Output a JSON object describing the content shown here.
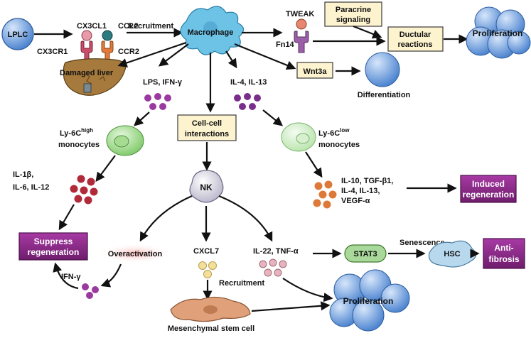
{
  "nodes": {
    "lplc": "LPLC",
    "cx3cl1": "CX3CL1",
    "ccl2": "CCL2",
    "cx3cr1": "CX3CR1",
    "ccr2": "CCR2",
    "damaged_liver": "Damaged liver",
    "recruitment_top": "Recruitment",
    "macrophage": "Macrophage",
    "tweak": "TWEAK",
    "fn14": "Fn14",
    "paracrine_1": "Paracrine",
    "paracrine_2": "signaling",
    "ductular_1": "Ductular",
    "ductular_2": "reactions",
    "proliferation_top": "Proliferation",
    "wnt3a": "Wnt3a",
    "differentiation": "Differentiation",
    "lps_ifn": "LPS, IFN-γ",
    "il4_il13": "IL-4, IL-13",
    "cellcell_1": "Cell-cell",
    "cellcell_2": "interactions",
    "ly6c_high_pre": "Ly-6C",
    "ly6c_high_sup": "high",
    "monocytes_left": "monocytes",
    "ly6c_low_pre": "Ly-6C",
    "ly6c_low_sup": "low",
    "monocytes_right": "monocytes",
    "il1b_1": "IL-1β,",
    "il1b_2": "IL-6, IL-12",
    "il10_1": "IL-10, TGF-β1,",
    "il10_2": "IL-4, IL-13,",
    "il10_3": "VEGF-α",
    "suppress_1": "Suppress",
    "suppress_2": "regeneration",
    "induced_1": "Induced",
    "induced_2": "regeneration",
    "nk": "NK",
    "overactivation": "Overactivation",
    "cxcl7": "CXCL7",
    "il22_tnf": "IL-22, TNF-α",
    "stat3": "STAT3",
    "senescence": "Senescence",
    "hsc": "HSC",
    "antifibrosis_1": "Anti-",
    "antifibrosis_2": "fibrosis",
    "ifn_gamma": "IFN-γ",
    "recruitment_bottom": "Recruitment",
    "proliferation_bottom": "Proliferation",
    "msc": "Mesenchymal stem cell"
  },
  "colors": {
    "cell_blue": "#4f86d0",
    "cell_green": "#8fd07a",
    "cell_lightgreen": "#c8ebc0",
    "purple_box": "#8e2a8c",
    "cream_box": "#fdf3cf",
    "macrophage": "#6dc3e6",
    "liver": "#a57a3c",
    "dot_purple": "#9a3aa0",
    "dot_red": "#b02a3a",
    "dot_orange": "#dd7a3a",
    "dot_yellow": "#f3df9a",
    "dot_pink": "#e6b4be",
    "msc": "#e0a07a",
    "stat3": "#a8d89a",
    "hsc": "#b8d8ee"
  }
}
